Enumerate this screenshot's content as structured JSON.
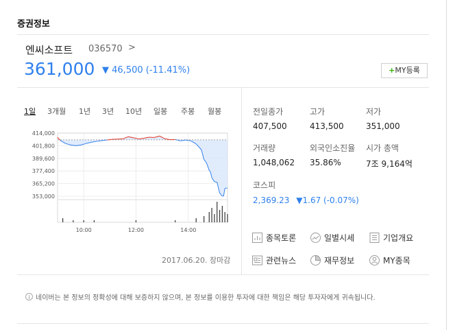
{
  "section_title": "증권정보",
  "stock": {
    "name": "엔씨소프트",
    "code": "036570",
    "chevron": ">",
    "price": "361,000",
    "change_arrow": "▼",
    "change": "46,500 (-11.41%)",
    "my_button_plus": "+",
    "my_button_label": "MY등록"
  },
  "tabs": [
    "1일",
    "3개월",
    "1년",
    "3년",
    "10년",
    "일봉",
    "주봉",
    "월봉"
  ],
  "active_tab": "1일",
  "stats": [
    {
      "label": "전일종가",
      "value": "407,500",
      "color": "#222222"
    },
    {
      "label": "고가",
      "value": "413,500",
      "color": "#e33322"
    },
    {
      "label": "저가",
      "value": "351,000",
      "color": "#2f80ed"
    },
    {
      "label": "거래량",
      "value": "1,048,062",
      "color": "#222222"
    },
    {
      "label": "외국인소진율",
      "value": "35.86%",
      "color": "#222222"
    },
    {
      "label": "시가 총액",
      "value": "7조 9,164억",
      "color": "#222222"
    }
  ],
  "kospi": {
    "label": "코스피",
    "value": "2,369.23",
    "arrow": "▼",
    "change": "1.67 (-0.07%)"
  },
  "links": [
    {
      "label": "종목토론",
      "icon": "chart-board-icon"
    },
    {
      "label": "일별시세",
      "icon": "trend-circle-icon"
    },
    {
      "label": "기업개요",
      "icon": "list-doc-icon"
    },
    {
      "label": "관련뉴스",
      "icon": "news-icon"
    },
    {
      "label": "재무정보",
      "icon": "pie-chart-icon"
    },
    {
      "label": "MY종목",
      "icon": "user-icon"
    }
  ],
  "date_note": "2017.06.20. 장마감",
  "disclaimer_icon": "i",
  "disclaimer": "네이버는 본 정보의 정확성에 대해 보증하지 않으며, 본 정보를 이용한 투자에 대한 책임은 해당 투자자에게 귀속됩니다.",
  "colors": {
    "up": "#e33322",
    "down": "#2f80ed",
    "accent": "#2db400"
  },
  "chart_data": {
    "type": "line",
    "yticks": [
      "414,000",
      "401,800",
      "389,600",
      "377,400",
      "365,200",
      "353,000"
    ],
    "ylim": [
      353000,
      414000
    ],
    "xticks": [
      "10:00",
      "12:00",
      "14:00"
    ],
    "xlim": [
      9,
      15.5
    ],
    "reference": 407500,
    "series": [
      {
        "x": [
          9.0,
          9.1,
          9.2,
          9.3,
          9.5,
          9.7,
          9.9,
          10.1,
          10.3,
          10.5,
          10.7,
          10.9,
          11.1,
          11.3,
          11.5,
          11.7,
          11.9,
          12.1,
          12.3,
          12.5,
          12.7,
          12.9,
          13.1,
          13.3,
          13.5,
          13.7,
          13.9,
          14.1,
          14.3,
          14.5,
          14.6,
          14.7,
          14.8,
          14.85,
          14.9,
          15.0,
          15.1,
          15.2,
          15.3,
          15.35,
          15.4,
          15.5
        ],
        "y": [
          410000,
          407000,
          405500,
          404000,
          402500,
          401800,
          402500,
          404000,
          405200,
          406000,
          406800,
          407400,
          408000,
          408200,
          408500,
          410500,
          409500,
          408400,
          409000,
          410000,
          409800,
          411200,
          408600,
          407600,
          407800,
          406500,
          407300,
          406500,
          403500,
          398000,
          388500,
          385000,
          378000,
          376400,
          371000,
          367000,
          366500,
          356000,
          353200,
          353200,
          360500,
          361000
        ]
      }
    ],
    "volume": {
      "x": [
        9.2,
        9.6,
        10.0,
        10.4,
        12.0,
        13.5,
        14.3,
        14.6,
        14.8,
        14.9,
        15.0,
        15.1,
        15.2,
        15.3,
        15.4,
        15.5
      ],
      "v": [
        2,
        1,
        1,
        1,
        1,
        1,
        2,
        3,
        5,
        7,
        4,
        10,
        6,
        8,
        5,
        4
      ]
    }
  }
}
